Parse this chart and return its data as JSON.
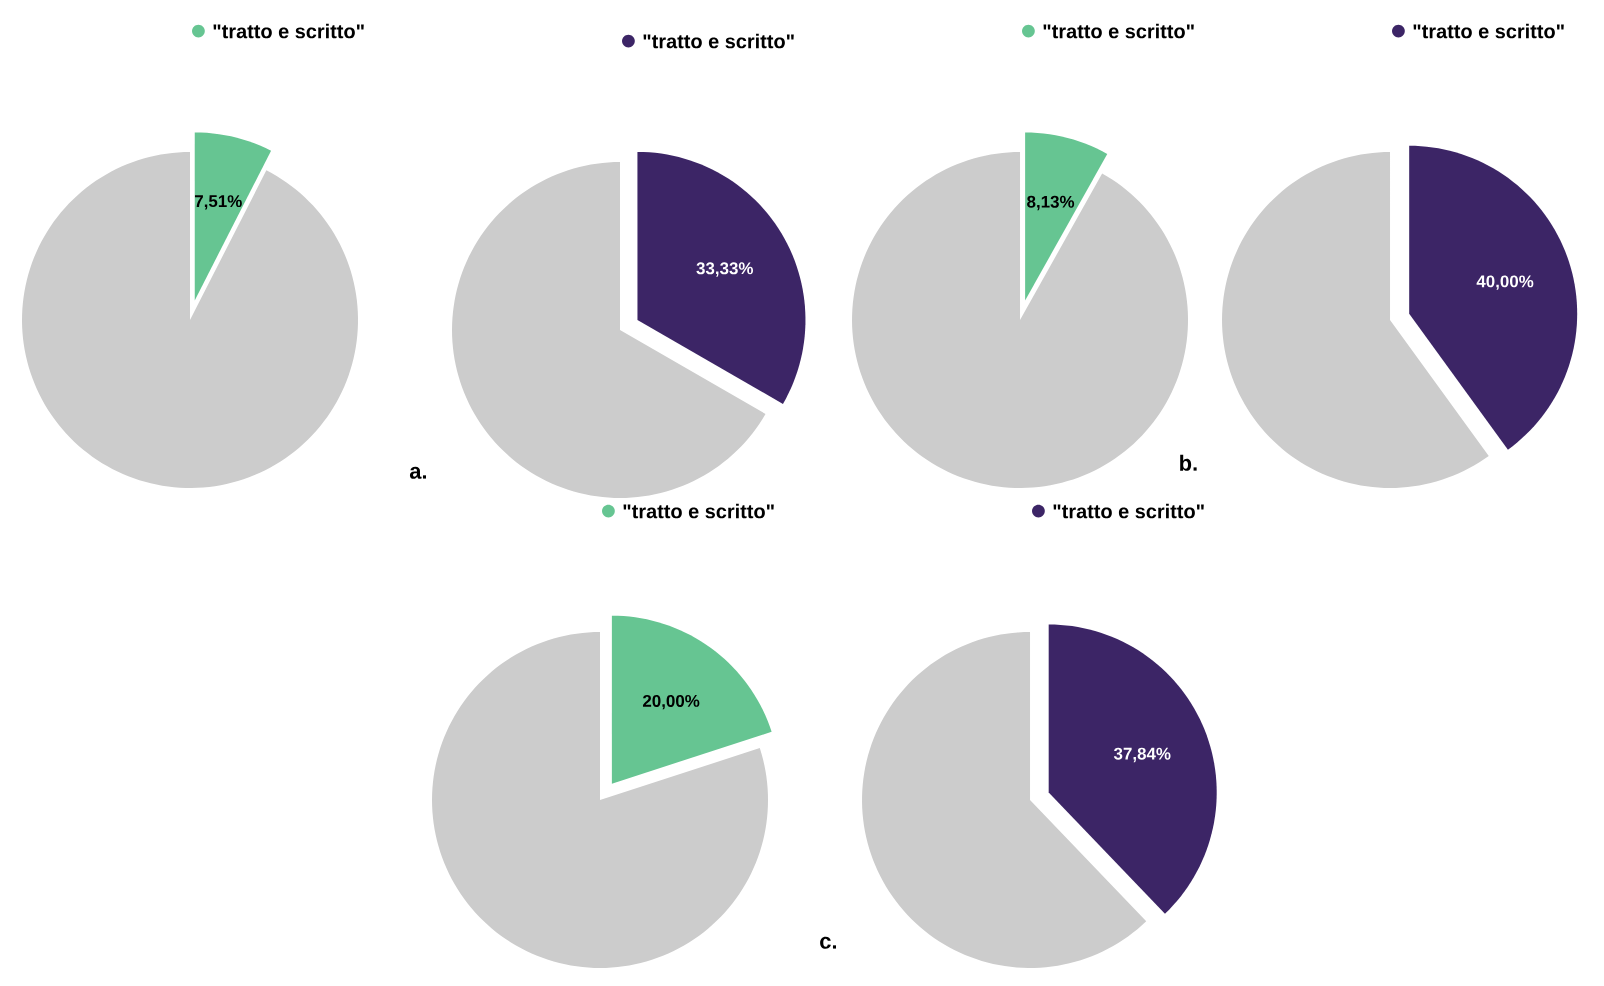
{
  "chart_data": [
    {
      "type": "pie",
      "categories": [
        "\"tratto e scritto\"",
        null
      ],
      "values": [
        7.51,
        92.49
      ],
      "colors": [
        "#66c592",
        "#cccccc"
      ],
      "value_labels": [
        "7,51%",
        null
      ],
      "legend": "top"
    },
    {
      "type": "pie",
      "categories": [
        "\"tratto e scritto\"",
        null
      ],
      "values": [
        33.33,
        66.67
      ],
      "colors": [
        "#3c2566",
        "#cccccc"
      ],
      "value_labels": [
        "33,33%",
        null
      ],
      "legend": "top",
      "annotations": [
        "a."
      ]
    },
    {
      "type": "pie",
      "categories": [
        "\"tratto e scritto\"",
        null
      ],
      "values": [
        8.13,
        91.87
      ],
      "colors": [
        "#66c592",
        "#cccccc"
      ],
      "value_labels": [
        "8,13%",
        null
      ],
      "legend": "top"
    },
    {
      "type": "pie",
      "categories": [
        "\"tratto e scritto\"",
        null
      ],
      "values": [
        40.0,
        60.0
      ],
      "colors": [
        "#3c2566",
        "#cccccc"
      ],
      "value_labels": [
        "40,00%",
        null
      ],
      "legend": "top",
      "annotations": [
        "b."
      ]
    },
    {
      "type": "pie",
      "categories": [
        "\"tratto e scritto\"",
        null
      ],
      "values": [
        20.0,
        80.0
      ],
      "colors": [
        "#66c592",
        "#cccccc"
      ],
      "value_labels": [
        "20,00%",
        null
      ],
      "legend": "top"
    },
    {
      "type": "pie",
      "categories": [
        "\"tratto e scritto\"",
        null
      ],
      "values": [
        37.84,
        62.16
      ],
      "colors": [
        "#3c2566",
        "#cccccc"
      ],
      "value_labels": [
        "37,84%",
        null
      ],
      "legend": "top",
      "annotations": [
        "c."
      ]
    }
  ]
}
